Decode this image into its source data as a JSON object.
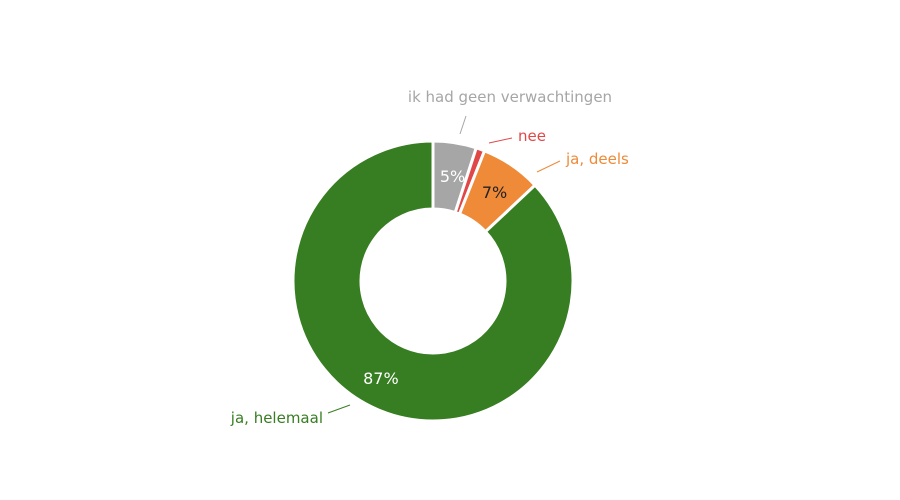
{
  "chart_data": {
    "type": "pie",
    "donut": true,
    "categories": [
      "ik had geen verwachtingen",
      "nee",
      "ja, deels",
      "ja, helemaal"
    ],
    "values": [
      5,
      1,
      7,
      87
    ],
    "value_labels": [
      "5%",
      "",
      "7%",
      "87%"
    ],
    "colors": [
      "#a6a6a6",
      "#e04848",
      "#ee8a38",
      "#377d22"
    ],
    "label_text_colors": [
      "#ffffff",
      "#ffffff",
      "#222222",
      "#ffffff"
    ],
    "category_text_colors": [
      "#a6a6a6",
      "#e04848",
      "#ee8a38",
      "#377d22"
    ],
    "legend": "none"
  }
}
